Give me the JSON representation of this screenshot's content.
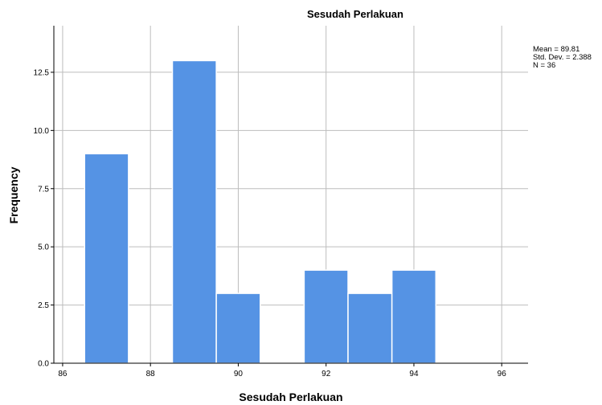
{
  "chart_data": {
    "type": "bar",
    "title": "Sesudah Perlakuan",
    "xlabel": "Sesudah Perlakuan",
    "ylabel": "Frequency",
    "xlim": [
      85.8,
      96.6
    ],
    "ylim": [
      0,
      14.5
    ],
    "xticks": [
      86,
      88,
      90,
      92,
      94,
      96
    ],
    "xtick_labels": [
      "86",
      "88",
      "90",
      "92",
      "94",
      "96"
    ],
    "yticks": [
      0,
      2.5,
      5,
      7.5,
      10,
      12.5
    ],
    "ytick_labels": [
      "0.0",
      "2.5",
      "5.0",
      "7.5",
      "10.0",
      "12.5"
    ],
    "bin_width": 1,
    "bins": [
      {
        "start": 86.5,
        "end": 87.5,
        "value": 9
      },
      {
        "start": 87.5,
        "end": 88.5,
        "value": 0
      },
      {
        "start": 88.5,
        "end": 89.5,
        "value": 13
      },
      {
        "start": 89.5,
        "end": 90.5,
        "value": 3
      },
      {
        "start": 90.5,
        "end": 91.5,
        "value": 0
      },
      {
        "start": 91.5,
        "end": 92.5,
        "value": 4
      },
      {
        "start": 92.5,
        "end": 93.5,
        "value": 3
      },
      {
        "start": 93.5,
        "end": 94.5,
        "value": 4
      }
    ],
    "grid": true,
    "stats": {
      "mean": "Mean = 89.81",
      "std": "Std. Dev. = 2.388",
      "n": "N = 36"
    },
    "colors": {
      "bar": "#5593e4",
      "grid": "#bdbdbd"
    }
  }
}
